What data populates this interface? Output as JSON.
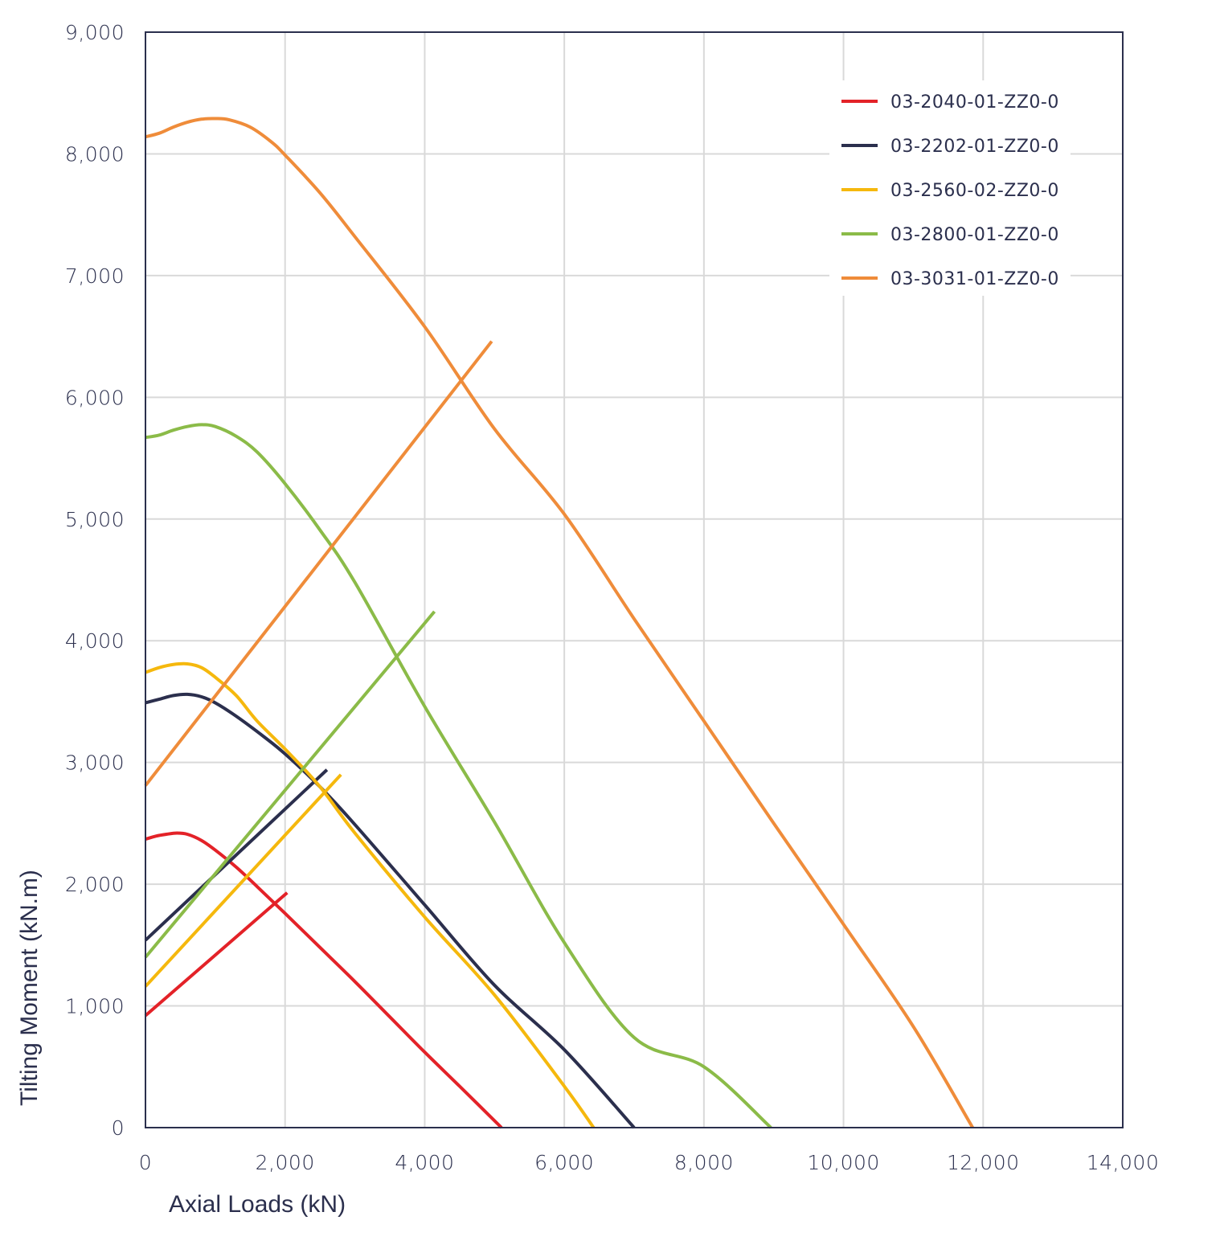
{
  "chart_data": {
    "type": "line",
    "title": "",
    "xlabel": "Axial Loads (kN)",
    "ylabel": "Tilting Moment (kN.m)",
    "xlim": [
      0,
      14000
    ],
    "ylim": [
      0,
      9000
    ],
    "x_ticks": [
      "0",
      "2,000",
      "4,000",
      "6,000",
      "8,000",
      "10,000",
      "12,000",
      "14,000"
    ],
    "y_ticks": [
      "0",
      "1,000",
      "2,000",
      "3,000",
      "4,000",
      "5,000",
      "6,000",
      "7,000",
      "8,000",
      "9,000"
    ],
    "grid": true,
    "legend_position": "top-right",
    "series": [
      {
        "name": "03-2040-01-ZZ0-0",
        "color": "#e32228",
        "curve": [
          [
            0,
            2370
          ],
          [
            150,
            2395
          ],
          [
            300,
            2410
          ],
          [
            450,
            2420
          ],
          [
            600,
            2410
          ],
          [
            800,
            2360
          ],
          [
            1000,
            2280
          ],
          [
            1300,
            2140
          ],
          [
            1600,
            1980
          ],
          [
            2000,
            1760
          ],
          [
            2500,
            1480
          ],
          [
            3000,
            1200
          ],
          [
            3500,
            910
          ],
          [
            4000,
            620
          ],
          [
            4500,
            340
          ],
          [
            5100,
            0
          ]
        ],
        "line": [
          [
            0,
            920
          ],
          [
            2030,
            1930
          ]
        ]
      },
      {
        "name": "03-2202-01-ZZ0-0",
        "color": "#2b2f4d",
        "curve": [
          [
            0,
            3490
          ],
          [
            200,
            3520
          ],
          [
            400,
            3550
          ],
          [
            600,
            3560
          ],
          [
            800,
            3540
          ],
          [
            1000,
            3490
          ],
          [
            1300,
            3380
          ],
          [
            1700,
            3210
          ],
          [
            2000,
            3070
          ],
          [
            2500,
            2800
          ],
          [
            3000,
            2490
          ],
          [
            4000,
            1830
          ],
          [
            5000,
            1170
          ],
          [
            6000,
            640
          ],
          [
            7000,
            0
          ]
        ],
        "line": [
          [
            0,
            1540
          ],
          [
            2600,
            2940
          ]
        ]
      },
      {
        "name": "03-2560-02-ZZ0-0",
        "color": "#f5b80d",
        "curve": [
          [
            0,
            3740
          ],
          [
            200,
            3780
          ],
          [
            400,
            3805
          ],
          [
            600,
            3810
          ],
          [
            800,
            3780
          ],
          [
            1000,
            3700
          ],
          [
            1300,
            3550
          ],
          [
            1600,
            3340
          ],
          [
            2000,
            3110
          ],
          [
            2500,
            2800
          ],
          [
            3000,
            2420
          ],
          [
            4000,
            1730
          ],
          [
            5000,
            1090
          ],
          [
            6000,
            340
          ],
          [
            6420,
            0
          ]
        ],
        "line": [
          [
            0,
            1160
          ],
          [
            2800,
            2900
          ]
        ]
      },
      {
        "name": "03-2800-01-ZZ0-0",
        "color": "#8bbb48",
        "curve": [
          [
            0,
            5670
          ],
          [
            200,
            5690
          ],
          [
            400,
            5730
          ],
          [
            600,
            5760
          ],
          [
            800,
            5775
          ],
          [
            1000,
            5760
          ],
          [
            1300,
            5680
          ],
          [
            1600,
            5550
          ],
          [
            2000,
            5290
          ],
          [
            2500,
            4910
          ],
          [
            3000,
            4480
          ],
          [
            4000,
            3460
          ],
          [
            5000,
            2510
          ],
          [
            6000,
            1520
          ],
          [
            7000,
            740
          ],
          [
            8000,
            500
          ],
          [
            8960,
            0
          ]
        ],
        "line": [
          [
            0,
            1400
          ],
          [
            4140,
            4240
          ]
        ]
      },
      {
        "name": "03-3031-01-ZZ0-0",
        "color": "#ef8c3a",
        "curve": [
          [
            0,
            8140
          ],
          [
            200,
            8170
          ],
          [
            400,
            8220
          ],
          [
            600,
            8260
          ],
          [
            800,
            8285
          ],
          [
            1000,
            8290
          ],
          [
            1200,
            8280
          ],
          [
            1500,
            8220
          ],
          [
            1800,
            8100
          ],
          [
            2000,
            7990
          ],
          [
            2500,
            7680
          ],
          [
            3000,
            7320
          ],
          [
            4000,
            6580
          ],
          [
            5000,
            5740
          ],
          [
            6000,
            5040
          ],
          [
            7000,
            4180
          ],
          [
            8000,
            3340
          ],
          [
            9000,
            2500
          ],
          [
            10000,
            1670
          ],
          [
            11000,
            830
          ],
          [
            11850,
            0
          ]
        ],
        "line": [
          [
            0,
            2810
          ],
          [
            4960,
            6460
          ]
        ]
      }
    ]
  }
}
